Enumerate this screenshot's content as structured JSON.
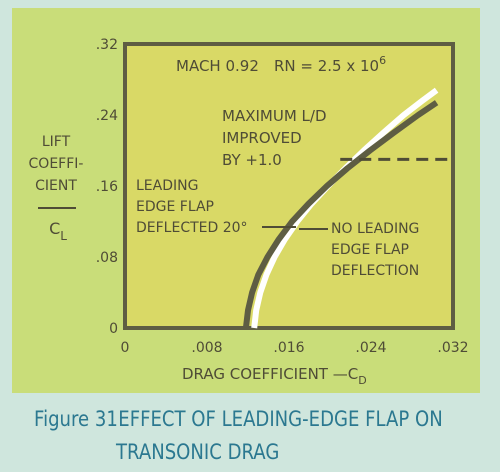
{
  "chart_data": {
    "type": "line",
    "title": "",
    "condition_label": "MACH 0.92",
    "rn_label_prefix": "RN = 2.5 x 10",
    "rn_label_exponent": "6",
    "xlabel": "DRAG COEFFICIENT —C",
    "xlabel_subscript": "D",
    "ylabel_lines": [
      "LIFT",
      "COEFFI-",
      "CIENT"
    ],
    "ylabel_symbol": "C",
    "ylabel_symbol_subscript": "L",
    "x_ticks": [
      0,
      0.008,
      0.016,
      0.024,
      0.032
    ],
    "x_tick_labels": [
      "0",
      ".008",
      ".016",
      ".024",
      ".032"
    ],
    "y_ticks": [
      0,
      0.08,
      0.16,
      0.24,
      0.32
    ],
    "y_tick_labels": [
      "0",
      ".08",
      ".16",
      ".24",
      ".32"
    ],
    "xlim": [
      0,
      0.032
    ],
    "ylim": [
      0,
      0.32
    ],
    "grid": false,
    "legend": "none",
    "series": [
      {
        "name": "LEADING EDGE FLAP DEFLECTED 20°",
        "label_lines": [
          "LEADING",
          "EDGE FLAP",
          "DEFLECTED 20°"
        ],
        "color": "#ffffff",
        "x": [
          0.0126,
          0.0128,
          0.0132,
          0.0138,
          0.0146,
          0.0156,
          0.0168,
          0.0182,
          0.0198,
          0.0215,
          0.0233,
          0.0252,
          0.0272,
          0.029,
          0.0304
        ],
        "y": [
          0.0,
          0.02,
          0.04,
          0.06,
          0.08,
          0.1,
          0.12,
          0.14,
          0.16,
          0.18,
          0.2,
          0.22,
          0.24,
          0.256,
          0.268
        ]
      },
      {
        "name": "NO LEADING EDGE FLAP DEFLECTION",
        "label_lines": [
          "NO LEADING",
          "EDGE FLAP",
          "DEFLECTION"
        ],
        "color": "#5e5d43",
        "x": [
          0.0118,
          0.012,
          0.0124,
          0.013,
          0.0139,
          0.015,
          0.0163,
          0.0179,
          0.0197,
          0.0217,
          0.0239,
          0.0262,
          0.0286,
          0.0304
        ],
        "y": [
          0.0,
          0.02,
          0.04,
          0.06,
          0.08,
          0.1,
          0.12,
          0.14,
          0.16,
          0.18,
          0.2,
          0.22,
          0.24,
          0.254
        ]
      }
    ],
    "annotations": [
      {
        "id": "maximum-ld",
        "lines": [
          "MAXIMUM L/D",
          "IMPROVED",
          "BY +1.0"
        ],
        "dashed_line_y": 0.19,
        "dashed_line_x": [
          0.021,
          0.0315
        ]
      }
    ],
    "colors": {
      "plot_background": "#d9d966",
      "panel_background": "#c9dd79",
      "frame": "#5e5d43",
      "text": "#4f4c36"
    }
  },
  "caption": {
    "figure_label": "Figure 31",
    "line1": "EFFECT OF LEADING-EDGE FLAP ON",
    "line2": "TRANSONIC DRAG"
  }
}
